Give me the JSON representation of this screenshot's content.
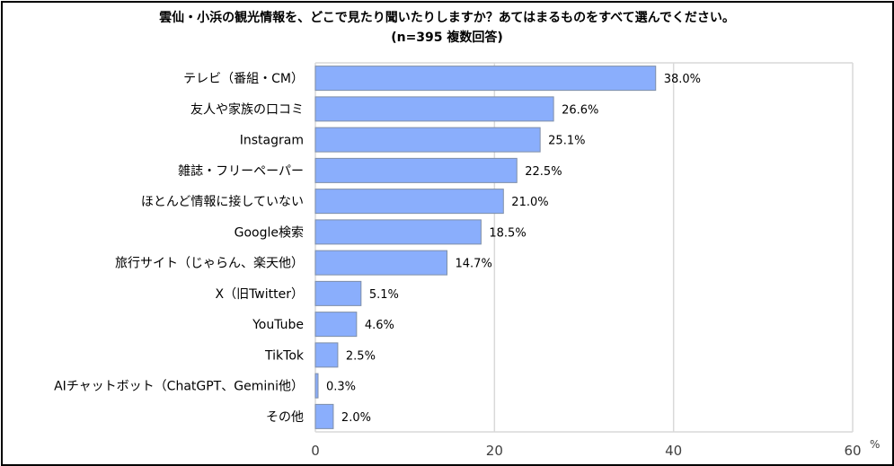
{
  "chart_data": {
    "type": "bar",
    "orientation": "horizontal",
    "title": "雲仙・小浜の観光情報を、どこで見たり聞いたりしますか？あてはまるものをすべて選んでください。",
    "subtitle": "(n=395 複数回答)",
    "categories": [
      "テレビ（番組・CM）",
      "友人や家族の口コミ",
      "Instagram",
      "雑誌・フリーペーパー",
      "ほとんど情報に接していない",
      "Google検索",
      "旅行サイト（じゃらん、楽天他）",
      "X（旧Twitter）",
      "YouTube",
      "TikTok",
      "AIチャットボット（ChatGPT、Gemini他）",
      "その他"
    ],
    "values": [
      38.0,
      26.6,
      25.1,
      22.5,
      21.0,
      18.5,
      14.7,
      5.1,
      4.6,
      2.5,
      0.3,
      2.0
    ],
    "data_labels": [
      "38.0%",
      "26.6%",
      "25.1%",
      "22.5%",
      "21.0%",
      "18.5%",
      "14.7%",
      "5.1%",
      "4.6%",
      "2.5%",
      "0.3%",
      "2.0%"
    ],
    "xlim": [
      0,
      60
    ],
    "xticks": [
      "0",
      "20",
      "40",
      "60"
    ],
    "xticks_values": [
      0,
      20,
      40,
      60
    ],
    "xlabel": "%",
    "grid": true,
    "bar_color": "#8aaefc",
    "bar_border": "#7f8fa8"
  }
}
